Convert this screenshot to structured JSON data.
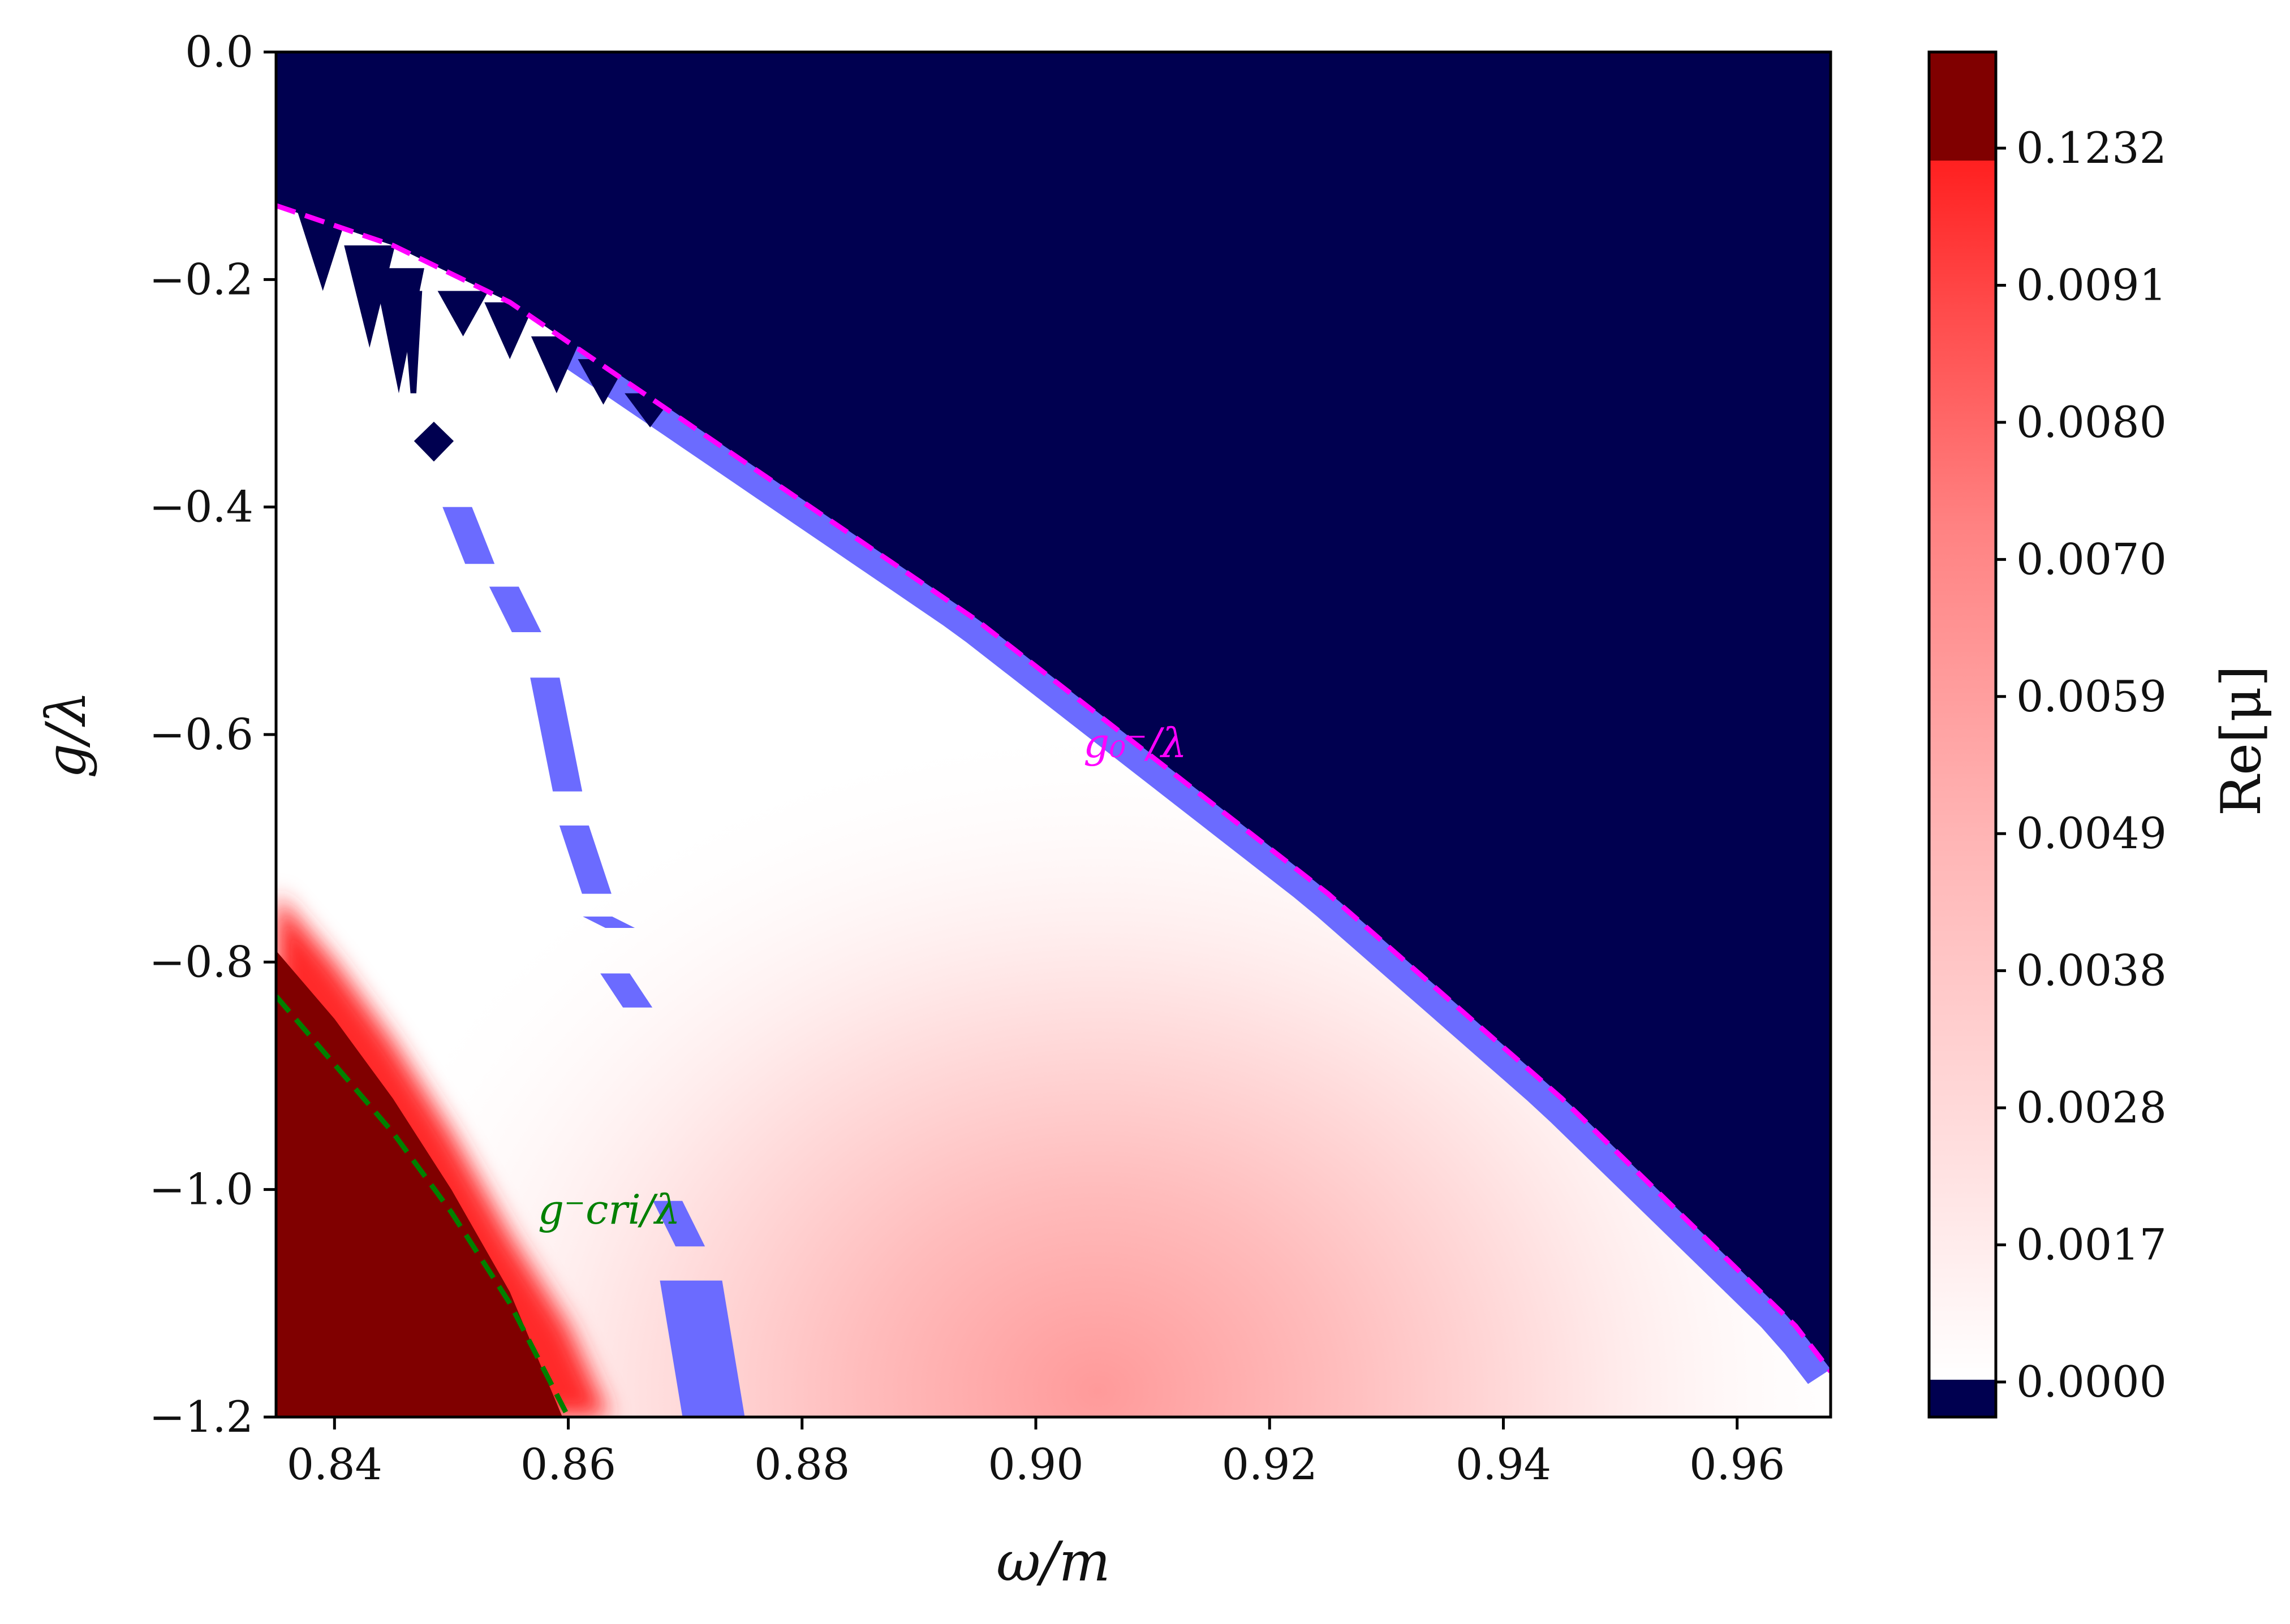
{
  "chart_data": {
    "type": "heatmap",
    "xlabel": "ω/m",
    "ylabel": "g/λ",
    "xlim": [
      0.835,
      0.968
    ],
    "ylim": [
      -1.2,
      0.0
    ],
    "x_ticks": [
      0.84,
      0.86,
      0.88,
      0.9,
      0.92,
      0.94,
      0.96
    ],
    "x_tick_labels": [
      "0.84",
      "0.86",
      "0.88",
      "0.90",
      "0.92",
      "0.94",
      "0.96"
    ],
    "y_ticks": [
      0.0,
      -0.2,
      -0.4,
      -0.6,
      -0.8,
      -1.0,
      -1.2
    ],
    "y_tick_labels": [
      "0.0",
      "−0.2",
      "−0.4",
      "−0.6",
      "−0.8",
      "−1.0",
      "−1.2"
    ],
    "colorbar": {
      "label": "Re[μ]",
      "position": "right",
      "tick_labels": [
        "0.0000",
        "0.0017",
        "0.0028",
        "0.0038",
        "0.0049",
        "0.0059",
        "0.0070",
        "0.0080",
        "0.0091",
        "0.1232"
      ],
      "colors": {
        "below_zero": "#000050",
        "low": "#ffffff",
        "mid": "#ff9a9a",
        "high": "#ff2a2a",
        "top": "#800000"
      }
    },
    "curves": [
      {
        "name": "g0-",
        "label": "g₀⁻/λ",
        "color": "#ff00ff",
        "style": "dashed",
        "x": [
          0.835,
          0.845,
          0.855,
          0.865,
          0.875,
          0.885,
          0.895,
          0.905,
          0.915,
          0.925,
          0.935,
          0.945,
          0.955,
          0.965,
          0.968
        ],
        "y": [
          -0.135,
          -0.17,
          -0.22,
          -0.29,
          -0.36,
          -0.43,
          -0.5,
          -0.58,
          -0.66,
          -0.74,
          -0.83,
          -0.92,
          -1.02,
          -1.12,
          -1.16
        ]
      },
      {
        "name": "gcri-",
        "label": "g⁻cri/λ",
        "color": "#008000",
        "style": "dashed",
        "x": [
          0.835,
          0.84,
          0.845,
          0.85,
          0.855,
          0.86
        ],
        "y": [
          -0.83,
          -0.89,
          -0.95,
          -1.02,
          -1.1,
          -1.2
        ]
      }
    ],
    "annotations": [
      {
        "text": "g₀⁻/λ",
        "x": 0.9085,
        "y": -0.62,
        "color": "#ff00ff"
      },
      {
        "text": "g⁻cri/λ",
        "x": 0.8635,
        "y": -1.03,
        "color": "#008000"
      }
    ],
    "regions": [
      {
        "name": "dark-region",
        "color": "#000050"
      },
      {
        "name": "blue-band",
        "color": "#6b6bff"
      },
      {
        "name": "saturated-red",
        "color": "#800000"
      }
    ],
    "hotspot": {
      "x": 0.905,
      "y": -1.17,
      "value": 0.0038
    },
    "grid": false
  }
}
